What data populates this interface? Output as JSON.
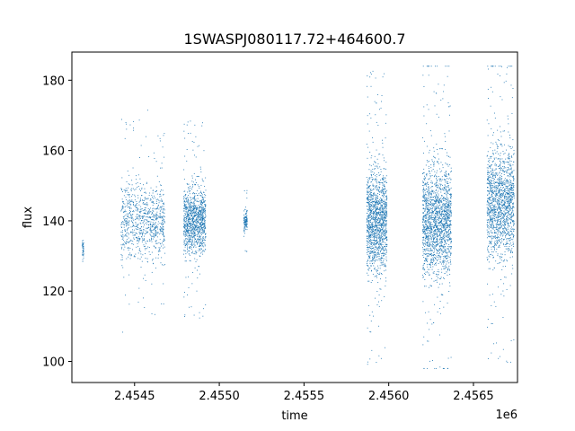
{
  "chart_data": {
    "type": "scatter",
    "title": "1SWASPJ080117.72+464600.7",
    "xlabel": "time",
    "ylabel": "flux",
    "x_offset_label": "1e6",
    "xlim": [
      2454130,
      2456760
    ],
    "ylim": [
      94,
      188
    ],
    "x_ticks": [
      2454500,
      2455000,
      2455500,
      2456000,
      2456500
    ],
    "x_tick_labels": [
      "2.4545",
      "2.4550",
      "2.4555",
      "2.4560",
      "2.4565"
    ],
    "y_ticks": [
      100,
      120,
      140,
      160,
      180
    ],
    "y_tick_labels": [
      "100",
      "120",
      "140",
      "160",
      "180"
    ],
    "grid": false,
    "marker_color": "#1f77b4",
    "observing_seasons": [
      {
        "x_start": 2454190,
        "x_end": 2454200,
        "y_center": 132,
        "y_spread": 4,
        "n": 40
      },
      {
        "x_start": 2454420,
        "x_end": 2454680,
        "y_center": 140,
        "y_spread": 18,
        "n": 900
      },
      {
        "x_start": 2454790,
        "x_end": 2454920,
        "y_center": 140,
        "y_spread": 16,
        "n": 1100
      },
      {
        "x_start": 2455145,
        "x_end": 2455165,
        "y_center": 140,
        "y_spread": 5,
        "n": 120
      },
      {
        "x_start": 2455870,
        "x_end": 2455990,
        "y_center": 140,
        "y_spread": 24,
        "n": 1400
      },
      {
        "x_start": 2456200,
        "x_end": 2456370,
        "y_center": 140,
        "y_spread": 26,
        "n": 1800
      },
      {
        "x_start": 2456580,
        "x_end": 2456740,
        "y_center": 145,
        "y_spread": 26,
        "n": 1500
      }
    ]
  }
}
